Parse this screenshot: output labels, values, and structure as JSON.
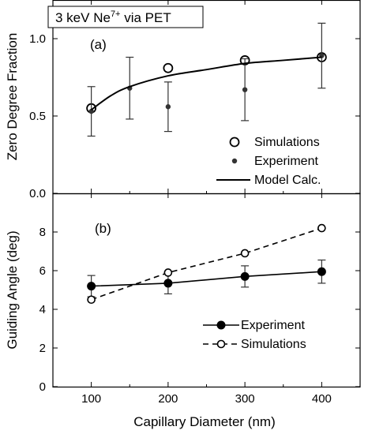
{
  "figure": {
    "header_text": "3 keV Ne",
    "header_sup": "7+",
    "header_suffix": " via PET",
    "xlabel": "Capillary Diameter (nm)"
  },
  "chart_data": [
    {
      "type": "scatter",
      "panel_label": "(a)",
      "ylabel": "Zero Degree Fraction",
      "xlim": [
        50,
        450
      ],
      "ylim": [
        0.0,
        1.25
      ],
      "x_ticks": [
        100,
        200,
        300,
        400
      ],
      "y_ticks": [
        0.0,
        0.5,
        1.0
      ],
      "y_tick_labels": [
        "0.0",
        "0.5",
        "1.0"
      ],
      "legend_position": "bottom-right",
      "series": [
        {
          "name": "Simulations",
          "style": "open-circle",
          "x": [
            100,
            200,
            300,
            400
          ],
          "y": [
            0.55,
            0.81,
            0.86,
            0.88
          ]
        },
        {
          "name": "Experiment",
          "style": "filled-dot",
          "x": [
            100,
            150,
            200,
            300,
            400
          ],
          "y": [
            0.53,
            0.68,
            0.56,
            0.67,
            0.89
          ],
          "yerr": [
            0.16,
            0.2,
            0.16,
            0.2,
            0.21
          ]
        },
        {
          "name": "Model Calc.",
          "style": "solid-line",
          "x": [
            100,
            125,
            150,
            200,
            250,
            300,
            350,
            400
          ],
          "y": [
            0.54,
            0.63,
            0.69,
            0.76,
            0.8,
            0.84,
            0.86,
            0.88
          ]
        }
      ]
    },
    {
      "type": "line",
      "panel_label": "(b)",
      "ylabel": "Guiding Angle (deg)",
      "xlim": [
        50,
        450
      ],
      "ylim": [
        0,
        10
      ],
      "x_ticks": [
        100,
        200,
        300,
        400
      ],
      "x_tick_labels": [
        "100",
        "200",
        "300",
        "400"
      ],
      "y_ticks": [
        0,
        2,
        4,
        6,
        8
      ],
      "y_tick_labels": [
        "0",
        "2",
        "4",
        "6",
        "8"
      ],
      "legend_position": "bottom-right",
      "series": [
        {
          "name": "Experiment",
          "style": "filled-circle-solid",
          "x": [
            100,
            200,
            300,
            400
          ],
          "y": [
            5.2,
            5.35,
            5.7,
            5.95
          ],
          "yerr": [
            0.55,
            0.55,
            0.55,
            0.6
          ]
        },
        {
          "name": "Simulations",
          "style": "open-circle-dashed",
          "x": [
            100,
            200,
            300,
            400
          ],
          "y": [
            4.5,
            5.9,
            6.9,
            8.2
          ]
        }
      ]
    }
  ]
}
